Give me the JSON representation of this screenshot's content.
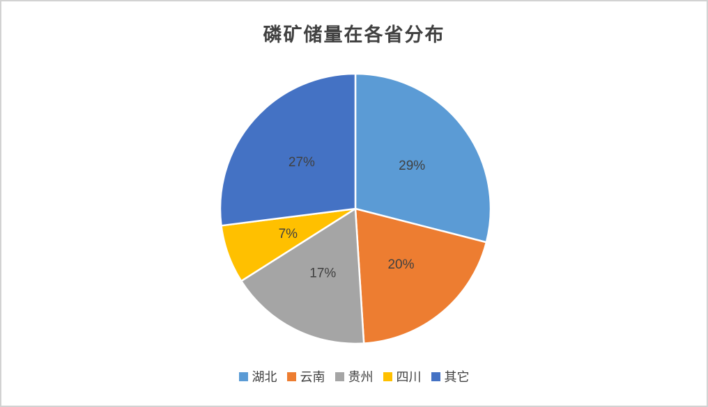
{
  "page": {
    "background_color": "#ffffff",
    "border_color": "#d2d2d2"
  },
  "chart_data": {
    "type": "pie",
    "title": "磷矿储量在各省分布",
    "categories": [
      "湖北",
      "云南",
      "贵州",
      "四川",
      "其它"
    ],
    "values": [
      29,
      20,
      17,
      7,
      27
    ],
    "unit": "%",
    "data_labels": [
      "29%",
      "20%",
      "17%",
      "7%",
      "27%"
    ],
    "colors": [
      "#5B9BD5",
      "#ED7D31",
      "#A5A5A5",
      "#FFC000",
      "#4472C4"
    ],
    "start_angle_deg": 0,
    "direction": "clockwise",
    "slice_border_color": "#ffffff",
    "label_color": "#404040",
    "title_color": "#404040",
    "legend_position": "bottom"
  }
}
